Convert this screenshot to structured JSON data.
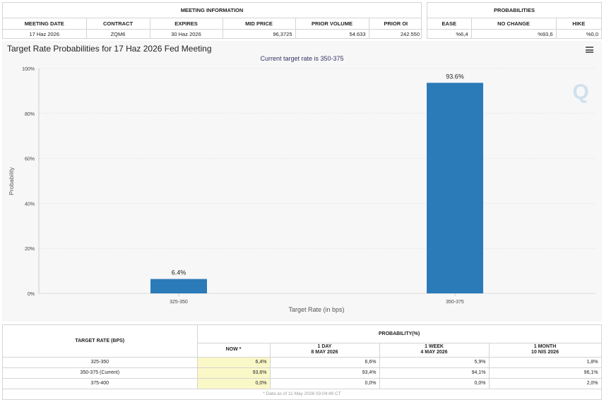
{
  "meeting_info": {
    "title": "MEETING INFORMATION",
    "headers": [
      "MEETING DATE",
      "CONTRACT",
      "EXPIRES",
      "MID PRICE",
      "PRIOR VOLUME",
      "PRIOR OI"
    ],
    "values": [
      "17 Haz 2026",
      "ZQM6",
      "30 Haz 2026",
      "96,3725",
      "54.633",
      "242.550"
    ]
  },
  "probabilities": {
    "title": "PROBABILITIES",
    "headers": [
      "EASE",
      "NO CHANGE",
      "HIKE"
    ],
    "values": [
      "%6,4",
      "%93,6",
      "%0,0"
    ]
  },
  "chart": {
    "menu_icon": "hamburger-menu-icon",
    "watermark": "Q",
    "colors": {
      "bar": "#2b7bb9",
      "plot_bg": "#f7f7f7",
      "grid": "#dddddd",
      "subtitle": "#333366"
    }
  },
  "chart_data": {
    "type": "bar",
    "title": "Target Rate Probabilities for 17 Haz 2026 Fed Meeting",
    "subtitle": "Current target rate is 350-375",
    "xlabel": "Target Rate (in bps)",
    "ylabel": "Probability",
    "categories": [
      "325-350",
      "350-375"
    ],
    "values": [
      6.4,
      93.6
    ],
    "data_labels": [
      "6.4%",
      "93.6%"
    ],
    "ylim": [
      0,
      100
    ],
    "yticks": [
      0,
      20,
      40,
      60,
      80,
      100
    ],
    "ytick_labels": [
      "0%",
      "20%",
      "40%",
      "60%",
      "80%",
      "100%"
    ],
    "grid": true
  },
  "bottom_table": {
    "rate_header": "TARGET RATE (BPS)",
    "prob_header": "PROBABILITY(%)",
    "columns": [
      {
        "line1": "NOW *",
        "line2": ""
      },
      {
        "line1": "1 DAY",
        "line2": "8 MAY 2026"
      },
      {
        "line1": "1 WEEK",
        "line2": "4 MAY 2026"
      },
      {
        "line1": "1 MONTH",
        "line2": "10 NIS 2026"
      }
    ],
    "rows": [
      {
        "rate": "325-350",
        "now": "6,4%",
        "day": "6,6%",
        "week": "5,9%",
        "month": "1,8%"
      },
      {
        "rate": "350-375 (Current)",
        "now": "93,6%",
        "day": "93,4%",
        "week": "94,1%",
        "month": "96,1%"
      },
      {
        "rate": "375-400",
        "now": "0,0%",
        "day": "0,0%",
        "week": "0,0%",
        "month": "2,0%"
      }
    ],
    "footnote": "* Data as of 11 May 2026 03:04:49 CT"
  }
}
